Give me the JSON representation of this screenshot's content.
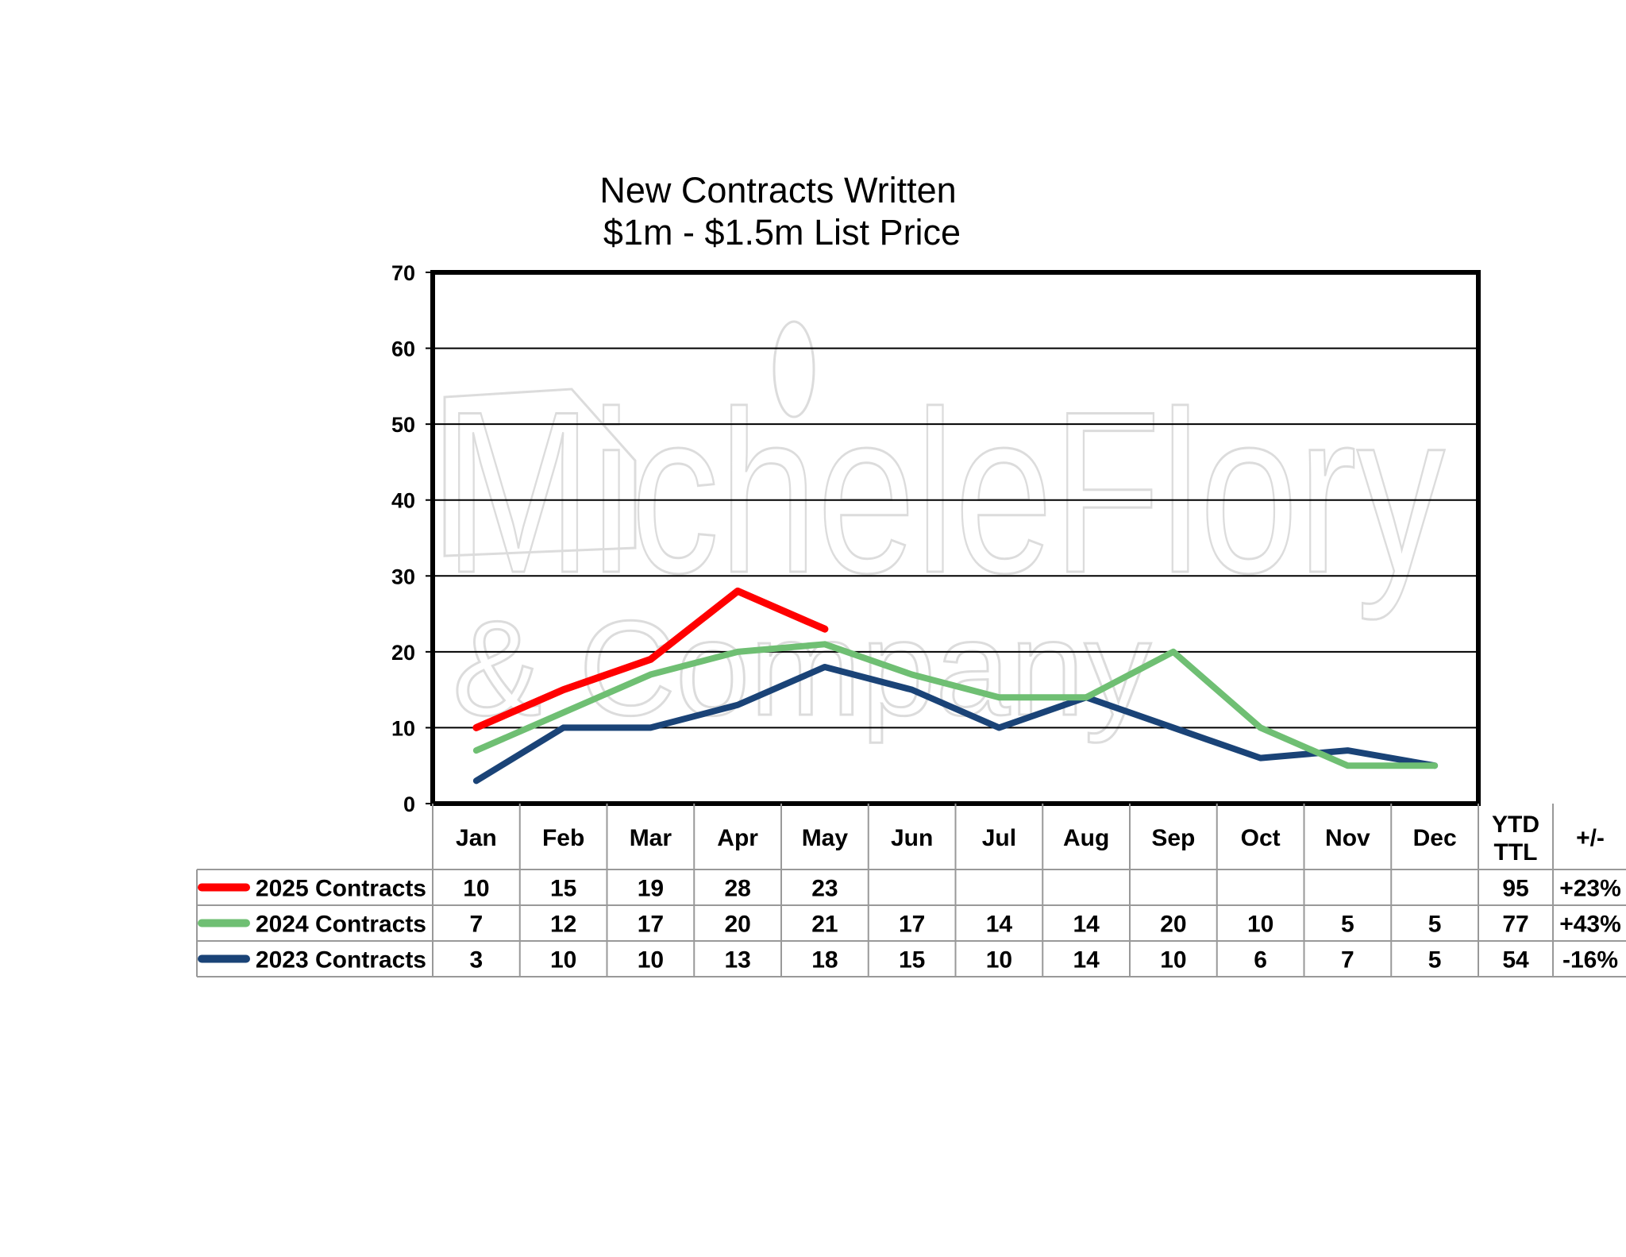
{
  "chart_data": {
    "type": "line",
    "title": "New Contracts Written",
    "subtitle": "$1m - $1.5m List Price",
    "watermark": {
      "line1": "MicheleFlory",
      "line2": "& Company"
    },
    "categories": [
      "Jan",
      "Feb",
      "Mar",
      "Apr",
      "May",
      "Jun",
      "Jul",
      "Aug",
      "Sep",
      "Oct",
      "Nov",
      "Dec"
    ],
    "ylim": [
      0,
      70
    ],
    "yticks": [
      "0",
      "10",
      "20",
      "30",
      "40",
      "50",
      "60",
      "70"
    ],
    "grid": true,
    "legend": "data-table-below",
    "extra_columns": {
      "ytd_label_line1": "YTD",
      "ytd_label_line2": "TTL",
      "change_label": "+/-"
    },
    "series": [
      {
        "name": "2025 Contracts",
        "color": "#ff0000",
        "values": [
          10,
          15,
          19,
          28,
          23,
          null,
          null,
          null,
          null,
          null,
          null,
          null
        ],
        "ytd": "95",
        "change": "+23%"
      },
      {
        "name": "2024 Contracts",
        "color": "#6fbf73",
        "values": [
          7,
          12,
          17,
          20,
          21,
          17,
          14,
          14,
          20,
          10,
          5,
          5
        ],
        "ytd": "77",
        "change": "+43%"
      },
      {
        "name": "2023 Contracts",
        "color": "#1a4377",
        "values": [
          3,
          10,
          10,
          13,
          18,
          15,
          10,
          14,
          10,
          6,
          7,
          5
        ],
        "ytd": "54",
        "change": "-16%"
      }
    ]
  }
}
